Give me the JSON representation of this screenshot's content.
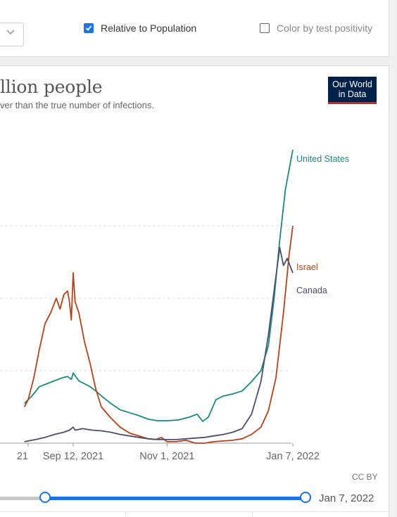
{
  "controls": {
    "relative_label": "Relative to Population",
    "relative_checked": true,
    "color_label": "Color by test positivity",
    "color_checked": false
  },
  "header": {
    "title": "llion people",
    "subtitle": "ver than the true number of infections.",
    "logo_line1": "Our World",
    "logo_line2": "in Data"
  },
  "footer": {
    "license": "CC BY",
    "timeline_end": "Jan 7, 2022"
  },
  "colors": {
    "united_states": "#1a8a7e",
    "israel": "#b5421a",
    "canada": "#4a4e6c",
    "grid": "#dddddd",
    "slider": "#1a73e8"
  },
  "chart_data": {
    "type": "line",
    "x_ticks": [
      "21",
      "Sep 12, 2021",
      "Nov 1, 2021",
      "Jan 7, 2022"
    ],
    "x_tick_days": [
      -24,
      0,
      50,
      117
    ],
    "x_unit": "days relative to Sep 12, 2021",
    "ylim": [
      0,
      4
    ],
    "grid": "horizontal dashed",
    "legend": "inline labels at line ends (right)",
    "series": [
      {
        "name": "United States",
        "color_key": "united_states",
        "points": [
          [
            -26,
            0.55
          ],
          [
            -22,
            0.65
          ],
          [
            -18,
            0.78
          ],
          [
            -14,
            0.82
          ],
          [
            -10,
            0.86
          ],
          [
            -6,
            0.9
          ],
          [
            -3,
            0.92
          ],
          [
            -1,
            0.88
          ],
          [
            0,
            0.97
          ],
          [
            1,
            0.93
          ],
          [
            3,
            0.86
          ],
          [
            6,
            0.82
          ],
          [
            9,
            0.78
          ],
          [
            12,
            0.72
          ],
          [
            16,
            0.63
          ],
          [
            20,
            0.55
          ],
          [
            25,
            0.46
          ],
          [
            30,
            0.42
          ],
          [
            35,
            0.38
          ],
          [
            40,
            0.33
          ],
          [
            45,
            0.31
          ],
          [
            50,
            0.31
          ],
          [
            56,
            0.32
          ],
          [
            62,
            0.36
          ],
          [
            66,
            0.4
          ],
          [
            69,
            0.3
          ],
          [
            72,
            0.36
          ],
          [
            76,
            0.6
          ],
          [
            80,
            0.65
          ],
          [
            85,
            0.68
          ],
          [
            90,
            0.72
          ],
          [
            95,
            0.85
          ],
          [
            100,
            1.0
          ],
          [
            104,
            1.35
          ],
          [
            107,
            2.0
          ],
          [
            110,
            2.8
          ],
          [
            113,
            3.5
          ],
          [
            117,
            4.05
          ]
        ]
      },
      {
        "name": "Israel",
        "color_key": "israel",
        "points": [
          [
            -26,
            0.5
          ],
          [
            -24,
            0.6
          ],
          [
            -21,
            0.9
          ],
          [
            -18,
            1.3
          ],
          [
            -15,
            1.65
          ],
          [
            -12,
            1.8
          ],
          [
            -9,
            2.0
          ],
          [
            -7,
            1.85
          ],
          [
            -5,
            2.05
          ],
          [
            -3,
            2.1
          ],
          [
            -2,
            1.95
          ],
          [
            -1,
            1.7
          ],
          [
            0,
            2.35
          ],
          [
            1,
            1.95
          ],
          [
            3,
            1.8
          ],
          [
            6,
            1.4
          ],
          [
            9,
            1.1
          ],
          [
            12,
            0.75
          ],
          [
            15,
            0.5
          ],
          [
            20,
            0.35
          ],
          [
            25,
            0.22
          ],
          [
            30,
            0.14
          ],
          [
            35,
            0.1
          ],
          [
            40,
            0.06
          ],
          [
            44,
            0.05
          ],
          [
            47,
            0.08
          ],
          [
            50,
            0.02
          ],
          [
            55,
            0.02
          ],
          [
            60,
            0.04
          ],
          [
            65,
            0.0
          ],
          [
            70,
            0.0
          ],
          [
            75,
            0.02
          ],
          [
            80,
            0.03
          ],
          [
            85,
            0.04
          ],
          [
            90,
            0.06
          ],
          [
            95,
            0.12
          ],
          [
            100,
            0.22
          ],
          [
            104,
            0.45
          ],
          [
            108,
            0.9
          ],
          [
            112,
            1.8
          ],
          [
            115,
            2.6
          ],
          [
            117,
            3.0
          ]
        ]
      },
      {
        "name": "Canada",
        "color_key": "canada",
        "points": [
          [
            -26,
            0.02
          ],
          [
            -20,
            0.05
          ],
          [
            -15,
            0.08
          ],
          [
            -10,
            0.12
          ],
          [
            -5,
            0.15
          ],
          [
            -2,
            0.18
          ],
          [
            0,
            0.22
          ],
          [
            1,
            0.18
          ],
          [
            5,
            0.2
          ],
          [
            10,
            0.18
          ],
          [
            15,
            0.17
          ],
          [
            20,
            0.15
          ],
          [
            25,
            0.12
          ],
          [
            30,
            0.1
          ],
          [
            35,
            0.08
          ],
          [
            40,
            0.06
          ],
          [
            45,
            0.05
          ],
          [
            50,
            0.05
          ],
          [
            55,
            0.05
          ],
          [
            60,
            0.06
          ],
          [
            65,
            0.07
          ],
          [
            70,
            0.08
          ],
          [
            75,
            0.1
          ],
          [
            80,
            0.12
          ],
          [
            85,
            0.15
          ],
          [
            90,
            0.2
          ],
          [
            95,
            0.4
          ],
          [
            100,
            0.85
          ],
          [
            104,
            1.5
          ],
          [
            108,
            2.3
          ],
          [
            110,
            2.7
          ],
          [
            112,
            2.45
          ],
          [
            114,
            2.55
          ],
          [
            117,
            2.35
          ]
        ]
      }
    ]
  }
}
